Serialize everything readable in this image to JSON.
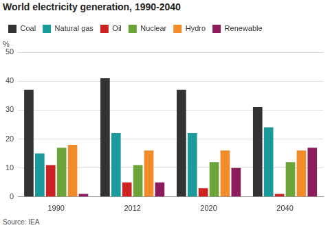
{
  "chart_data": {
    "type": "bar",
    "title": "World electricity generation, 1990-2040",
    "y_label": "%",
    "source": "Source: IEA",
    "categories": [
      "1990",
      "2012",
      "2020",
      "2040"
    ],
    "series": [
      {
        "name": "Coal",
        "color": "#333333",
        "values": [
          37,
          41,
          37,
          31
        ]
      },
      {
        "name": "Natural gas",
        "color": "#1a9a9a",
        "values": [
          15,
          22,
          22,
          24
        ]
      },
      {
        "name": "Oil",
        "color": "#cc2222",
        "values": [
          11,
          5,
          3,
          1
        ]
      },
      {
        "name": "Nuclear",
        "color": "#6ba53a",
        "values": [
          17,
          11,
          12,
          12
        ]
      },
      {
        "name": "Hydro",
        "color": "#f28b2a",
        "values": [
          18,
          16,
          16,
          16
        ]
      },
      {
        "name": "Renewable",
        "color": "#8c1c5c",
        "values": [
          1,
          5,
          10,
          17
        ]
      }
    ],
    "ylim": [
      0,
      50
    ],
    "yticks": [
      0,
      10,
      20,
      30,
      40,
      50
    ],
    "grid": true,
    "legend": "top-left"
  }
}
